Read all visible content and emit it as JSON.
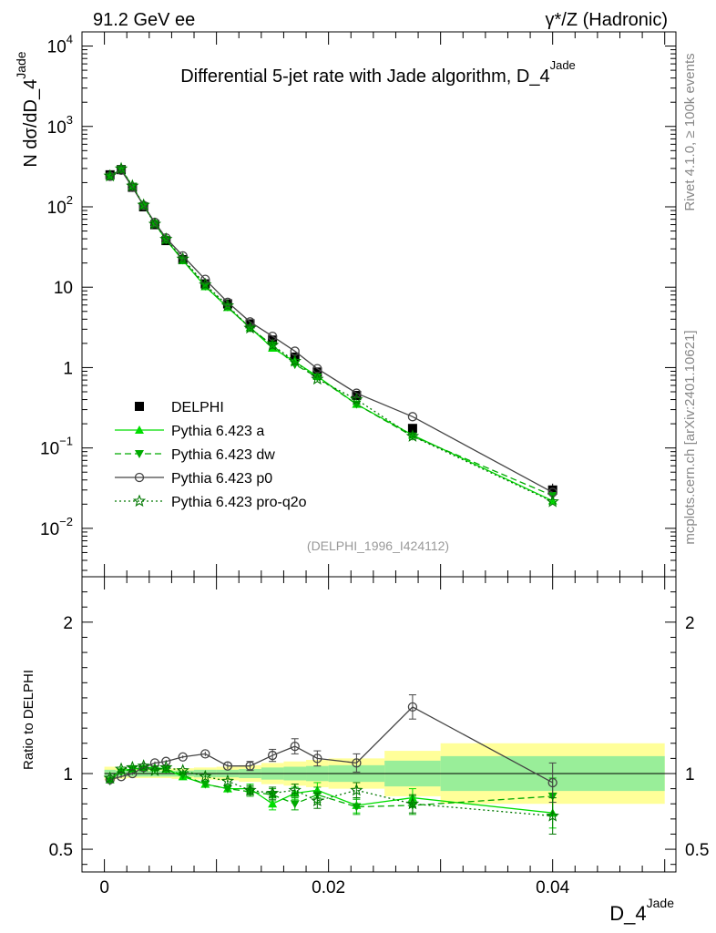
{
  "header": {
    "left": "91.2 GeV ee",
    "right": "γ*/Z (Hadronic)"
  },
  "side_labels": {
    "rivet": "Rivet 4.1.0, ≥ 100k events",
    "mcplots": "mcplots.cern.ch [arXiv:2401.10621]"
  },
  "chart_data": [
    {
      "type": "line",
      "panel": "main",
      "title": "Differential 5-jet rate with Jade algorithm, D_4",
      "title_sup": "Jade",
      "ylabel": "N  dσ/dD_4",
      "ylabel_sup": "Jade",
      "yscale": "log",
      "ylim": [
        0.0025,
        15000
      ],
      "xlim": [
        -0.002,
        0.051
      ],
      "yticks": [
        {
          "v": 10000,
          "base": "10",
          "exp": "4"
        },
        {
          "v": 1000,
          "base": "10",
          "exp": "3"
        },
        {
          "v": 100,
          "base": "10",
          "exp": "2"
        },
        {
          "v": 10,
          "base": "10",
          "exp": ""
        },
        {
          "v": 1,
          "base": "1",
          "exp": ""
        },
        {
          "v": 0.1,
          "base": "10",
          "exp": "−1"
        },
        {
          "v": 0.01,
          "base": "10",
          "exp": "−2"
        }
      ],
      "watermark": "(DELPHI_1996_I424112)",
      "legend_position": "lower-left",
      "x": [
        0.0005,
        0.0015,
        0.0025,
        0.0035,
        0.0045,
        0.0055,
        0.007,
        0.009,
        0.011,
        0.013,
        0.015,
        0.017,
        0.019,
        0.0225,
        0.0275,
        0.04
      ],
      "series": [
        {
          "name": "DELPHI",
          "style": "data",
          "color": "#000000",
          "values": [
            250,
            290,
            175,
            100,
            60,
            38,
            22,
            11,
            6.2,
            3.5,
            2.2,
            1.35,
            0.88,
            0.45,
            0.175,
            0.03
          ],
          "err_rel": [
            0.03,
            0.03,
            0.03,
            0.03,
            0.03,
            0.03,
            0.03,
            0.04,
            0.04,
            0.05,
            0.06,
            0.07,
            0.08,
            0.08,
            0.12,
            0.2
          ]
        },
        {
          "name": "Pythia 6.423 a",
          "style": "solid",
          "color": "#00dd00",
          "marker": "triangle-up",
          "values": [
            240,
            295,
            180,
            104,
            62,
            39,
            21.5,
            10.2,
            5.6,
            3.15,
            1.75,
            1.18,
            0.78,
            0.35,
            0.145,
            0.022
          ]
        },
        {
          "name": "Pythia 6.423 dw",
          "style": "dashed",
          "color": "#00aa00",
          "marker": "triangle-down",
          "values": [
            238,
            292,
            180,
            103,
            62,
            39,
            21.8,
            10.3,
            5.7,
            3.1,
            1.9,
            1.09,
            0.76,
            0.35,
            0.14,
            0.0255
          ]
        },
        {
          "name": "Pythia 6.423 p0",
          "style": "solid",
          "color": "#444444",
          "marker": "circle-open",
          "values": [
            240,
            285,
            175,
            104,
            64,
            41,
            24.5,
            12.5,
            6.5,
            3.7,
            2.45,
            1.6,
            0.97,
            0.48,
            0.245,
            0.028
          ]
        },
        {
          "name": "Pythia 6.423 pro-q2o",
          "style": "dotted",
          "color": "#007700",
          "marker": "star-open",
          "values": [
            242,
            298,
            182,
            105,
            61,
            39.5,
            22.5,
            10.8,
            5.9,
            3.1,
            1.9,
            1.2,
            0.72,
            0.4,
            0.14,
            0.0215
          ]
        }
      ]
    },
    {
      "type": "line",
      "panel": "ratio",
      "ylabel": "Ratio to DELPHI",
      "ylim": [
        0.35,
        2.3
      ],
      "xlim": [
        -0.002,
        0.051
      ],
      "yticks": [
        0.5,
        1,
        2
      ],
      "ytick_labels": [
        "0.5",
        "1",
        "2"
      ],
      "xlabel": "D_4",
      "xlabel_sup": "Jade",
      "xticks": [
        0,
        0.02,
        0.04
      ],
      "xtick_labels": [
        "0",
        "0.02",
        "0.04"
      ],
      "bands": {
        "edges": [
          0,
          0.001,
          0.002,
          0.003,
          0.004,
          0.005,
          0.006,
          0.008,
          0.01,
          0.012,
          0.014,
          0.016,
          0.018,
          0.02,
          0.025,
          0.03,
          0.05
        ],
        "green_half": [
          0.025,
          0.02,
          0.02,
          0.02,
          0.02,
          0.02,
          0.02,
          0.025,
          0.025,
          0.03,
          0.04,
          0.045,
          0.05,
          0.055,
          0.085,
          0.115
        ],
        "yellow_half": [
          0.045,
          0.035,
          0.03,
          0.03,
          0.03,
          0.03,
          0.035,
          0.04,
          0.045,
          0.055,
          0.07,
          0.08,
          0.09,
          0.1,
          0.15,
          0.2
        ]
      },
      "x": [
        0.0005,
        0.0015,
        0.0025,
        0.0035,
        0.0045,
        0.0055,
        0.007,
        0.009,
        0.011,
        0.013,
        0.015,
        0.017,
        0.019,
        0.0225,
        0.0275,
        0.04
      ],
      "series": [
        {
          "name": "Pythia 6.423 a",
          "style": "solid",
          "color": "#00dd00",
          "marker": "triangle-up",
          "values": [
            0.96,
            1.02,
            1.03,
            1.04,
            1.04,
            1.03,
            0.98,
            0.93,
            0.9,
            0.9,
            0.8,
            0.87,
            0.89,
            0.79,
            0.84,
            0.74
          ],
          "err": [
            0.01,
            0.01,
            0.01,
            0.01,
            0.01,
            0.01,
            0.01,
            0.015,
            0.02,
            0.03,
            0.04,
            0.04,
            0.05,
            0.05,
            0.06,
            0.1
          ]
        },
        {
          "name": "Pythia 6.423 dw",
          "style": "dashed",
          "color": "#00aa00",
          "marker": "triangle-down",
          "values": [
            0.95,
            1.01,
            1.03,
            1.03,
            1.03,
            1.03,
            0.99,
            0.93,
            0.9,
            0.88,
            0.86,
            0.8,
            0.86,
            0.78,
            0.79,
            0.85
          ],
          "err": [
            0.01,
            0.01,
            0.01,
            0.01,
            0.01,
            0.01,
            0.01,
            0.015,
            0.02,
            0.03,
            0.04,
            0.04,
            0.05,
            0.05,
            0.06,
            0.12
          ]
        },
        {
          "name": "Pythia 6.423 p0",
          "style": "solid",
          "color": "#444444",
          "marker": "circle-open",
          "values": [
            0.96,
            0.98,
            1.0,
            1.04,
            1.07,
            1.08,
            1.11,
            1.13,
            1.05,
            1.05,
            1.12,
            1.18,
            1.1,
            1.07,
            1.44,
            0.94
          ],
          "err": [
            0.01,
            0.01,
            0.01,
            0.01,
            0.01,
            0.01,
            0.01,
            0.015,
            0.02,
            0.03,
            0.04,
            0.05,
            0.05,
            0.06,
            0.08,
            0.13
          ]
        },
        {
          "name": "Pythia 6.423 pro-q2o",
          "style": "dotted",
          "color": "#007700",
          "marker": "star-open",
          "values": [
            0.97,
            1.03,
            1.04,
            1.05,
            1.02,
            1.04,
            1.02,
            0.98,
            0.95,
            0.89,
            0.87,
            0.89,
            0.82,
            0.89,
            0.8,
            0.72
          ],
          "err": [
            0.01,
            0.01,
            0.01,
            0.01,
            0.01,
            0.01,
            0.01,
            0.015,
            0.02,
            0.03,
            0.04,
            0.04,
            0.05,
            0.05,
            0.06,
            0.12
          ]
        }
      ]
    }
  ]
}
